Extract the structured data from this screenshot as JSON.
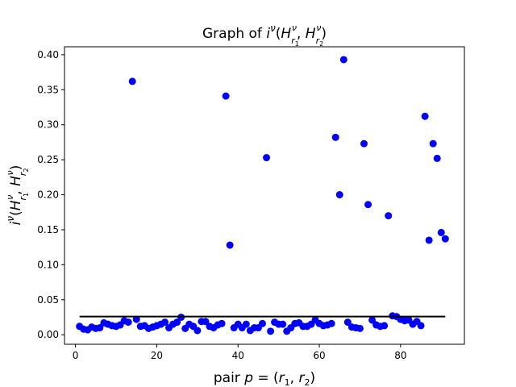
{
  "chart_data": {
    "type": "scatter",
    "title_prefix": "Graph of ",
    "xlabel_prefix": "pair ",
    "xlim": [
      -2.7,
      95.7
    ],
    "ylim": [
      -0.0136,
      0.4114
    ],
    "x_ticks": [
      0,
      20,
      40,
      60,
      80
    ],
    "y_ticks": [
      0.0,
      0.05,
      0.1,
      0.15,
      0.2,
      0.25,
      0.3,
      0.35,
      0.4
    ],
    "y_tick_labels": [
      "0.00",
      "0.05",
      "0.10",
      "0.15",
      "0.20",
      "0.25",
      "0.30",
      "0.35",
      "0.40"
    ],
    "grid": false,
    "series": [
      {
        "marker_color": "#0000ff",
        "points": [
          [
            1,
            0.012
          ],
          [
            2,
            0.008
          ],
          [
            3,
            0.007
          ],
          [
            4,
            0.011
          ],
          [
            5,
            0.009
          ],
          [
            6,
            0.01
          ],
          [
            7,
            0.017
          ],
          [
            8,
            0.015
          ],
          [
            9,
            0.013
          ],
          [
            10,
            0.012
          ],
          [
            11,
            0.014
          ],
          [
            12,
            0.02
          ],
          [
            13,
            0.018
          ],
          [
            14,
            0.362
          ],
          [
            15,
            0.022
          ],
          [
            16,
            0.012
          ],
          [
            17,
            0.013
          ],
          [
            18,
            0.009
          ],
          [
            19,
            0.011
          ],
          [
            20,
            0.013
          ],
          [
            21,
            0.015
          ],
          [
            22,
            0.018
          ],
          [
            23,
            0.01
          ],
          [
            24,
            0.015
          ],
          [
            25,
            0.018
          ],
          [
            26,
            0.025
          ],
          [
            27,
            0.009
          ],
          [
            28,
            0.015
          ],
          [
            29,
            0.012
          ],
          [
            30,
            0.006
          ],
          [
            31,
            0.019
          ],
          [
            32,
            0.019
          ],
          [
            33,
            0.012
          ],
          [
            34,
            0.01
          ],
          [
            35,
            0.014
          ],
          [
            36,
            0.016
          ],
          [
            37,
            0.341
          ],
          [
            38,
            0.128
          ],
          [
            39,
            0.01
          ],
          [
            40,
            0.015
          ],
          [
            41,
            0.01
          ],
          [
            42,
            0.015
          ],
          [
            43,
            0.006
          ],
          [
            44,
            0.01
          ],
          [
            45,
            0.01
          ],
          [
            46,
            0.016
          ],
          [
            47,
            0.253
          ],
          [
            48,
            0.005
          ],
          [
            49,
            0.018
          ],
          [
            50,
            0.015
          ],
          [
            51,
            0.015
          ],
          [
            52,
            0.005
          ],
          [
            53,
            0.01
          ],
          [
            54,
            0.016
          ],
          [
            55,
            0.017
          ],
          [
            56,
            0.012
          ],
          [
            57,
            0.012
          ],
          [
            58,
            0.015
          ],
          [
            59,
            0.021
          ],
          [
            60,
            0.016
          ],
          [
            61,
            0.013
          ],
          [
            62,
            0.014
          ],
          [
            63,
            0.016
          ],
          [
            64,
            0.282
          ],
          [
            65,
            0.2
          ],
          [
            66,
            0.393
          ],
          [
            67,
            0.018
          ],
          [
            68,
            0.011
          ],
          [
            69,
            0.01
          ],
          [
            70,
            0.009
          ],
          [
            71,
            0.273
          ],
          [
            72,
            0.186
          ],
          [
            73,
            0.021
          ],
          [
            74,
            0.014
          ],
          [
            75,
            0.012
          ],
          [
            76,
            0.013
          ],
          [
            77,
            0.17
          ],
          [
            78,
            0.027
          ],
          [
            79,
            0.026
          ],
          [
            80,
            0.022
          ],
          [
            81,
            0.02
          ],
          [
            82,
            0.021
          ],
          [
            83,
            0.015
          ],
          [
            84,
            0.019
          ],
          [
            85,
            0.013
          ],
          [
            86,
            0.312
          ],
          [
            87,
            0.135
          ],
          [
            88,
            0.273
          ],
          [
            89,
            0.252
          ],
          [
            90,
            0.146
          ],
          [
            91,
            0.137
          ]
        ]
      }
    ],
    "threshold_line": {
      "x_start": 1,
      "x_end": 91,
      "y": 0.026,
      "color": "#000000"
    }
  }
}
